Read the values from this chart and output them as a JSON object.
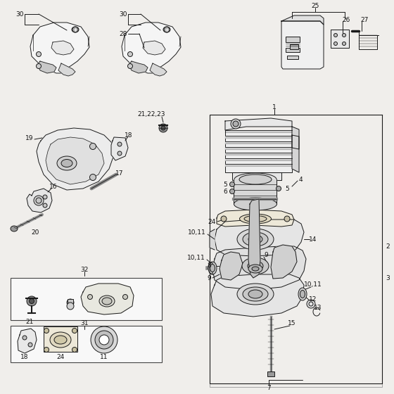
{
  "bg_color": "#f0eeeb",
  "line_color": "#1a1a1a",
  "label_color": "#111111",
  "fig_width": 5.6,
  "fig_height": 5.6,
  "dpi": 100,
  "lw": 0.7
}
